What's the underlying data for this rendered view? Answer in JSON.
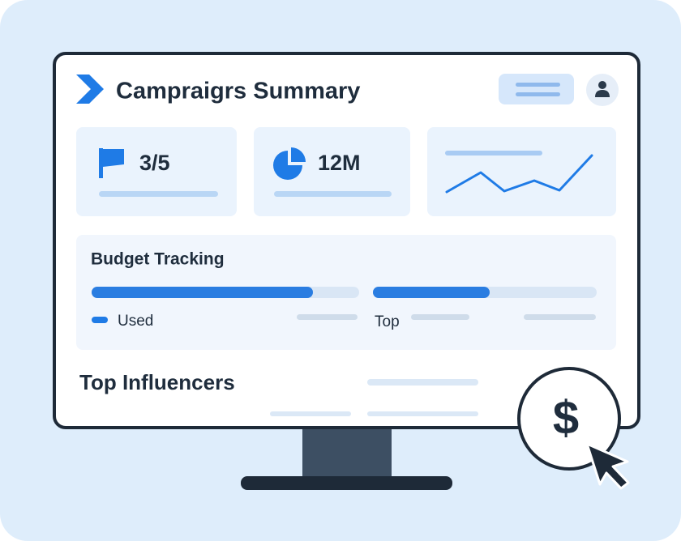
{
  "header": {
    "title": "Campraigrs Summary"
  },
  "stats": [
    {
      "value": "3/5"
    },
    {
      "value": "12M"
    }
  ],
  "budget": {
    "title": "Budget Tracking",
    "legend": [
      "Used",
      "Top"
    ]
  },
  "influencers": {
    "title": "Top Influencers"
  },
  "badge": {
    "symbol": "$"
  }
}
